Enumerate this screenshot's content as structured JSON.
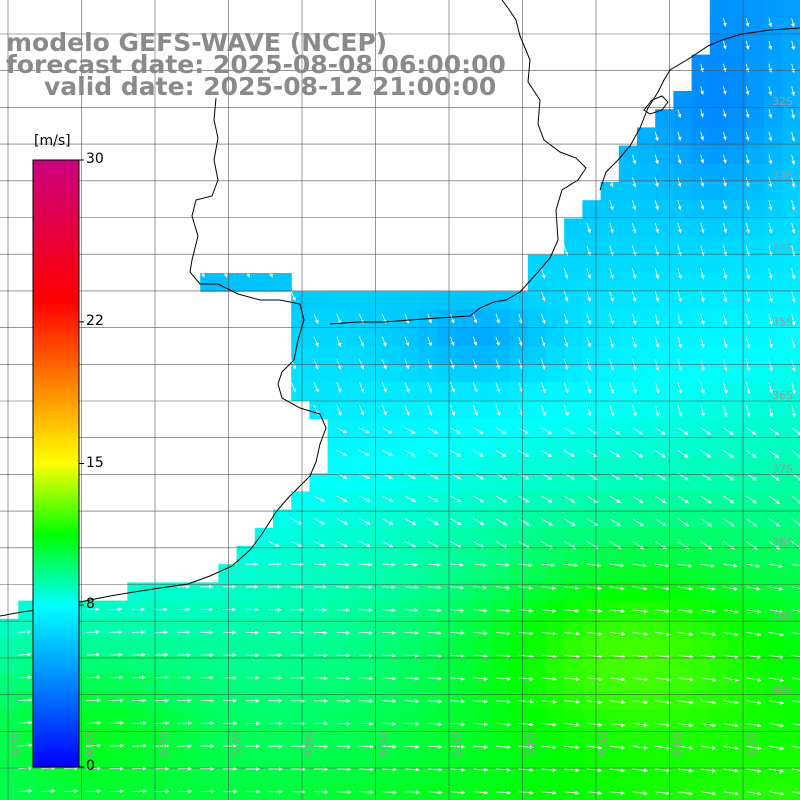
{
  "title": {
    "line1": "modelo GEFS-WAVE (NCEP)",
    "line2": "forecast date: 2025-08-08 06:00:00",
    "line3": "valid date: 2025-08-12 21:00:00"
  },
  "colorbar": {
    "unit": "[m/s]",
    "ticks": [
      {
        "value": 30,
        "label": "30"
      },
      {
        "value": 22,
        "label": "22"
      },
      {
        "value": 15,
        "label": "15"
      },
      {
        "value": 8,
        "label": "8"
      },
      {
        "value": 0,
        "label": "0"
      }
    ],
    "stops": [
      {
        "value": 0,
        "color": "#0000ff"
      },
      {
        "value": 4,
        "color": "#0080ff"
      },
      {
        "value": 8,
        "color": "#00ffff"
      },
      {
        "value": 11.5,
        "color": "#00ff00"
      },
      {
        "value": 15,
        "color": "#ffff00"
      },
      {
        "value": 19,
        "color": "#ff8000"
      },
      {
        "value": 23,
        "color": "#ff0000"
      },
      {
        "value": 30,
        "color": "#cc0080"
      }
    ]
  },
  "lat_labels": [
    "32S",
    "33S",
    "34S",
    "35S",
    "36S",
    "37S",
    "38S",
    "39S",
    "40S"
  ],
  "lon_labels": [
    "61W",
    "60W",
    "59W",
    "58W",
    "57W",
    "56W",
    "55W",
    "54W",
    "53W",
    "52W",
    "51W"
  ],
  "field": {
    "variable": "wind speed",
    "unit": "m/s",
    "min": 0,
    "max": 30
  }
}
